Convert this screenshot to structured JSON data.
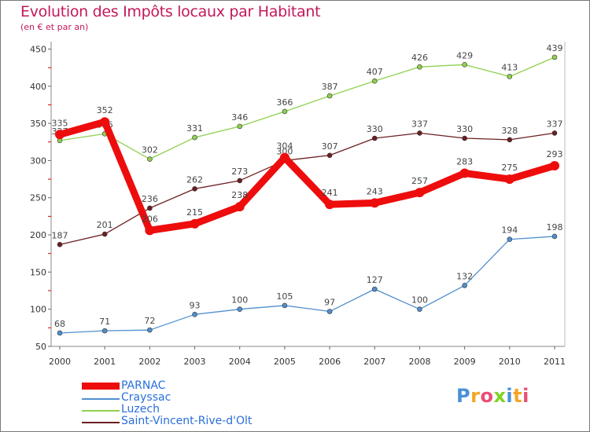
{
  "chart_data": {
    "type": "line",
    "title": "Evolution des Impôts locaux par Habitant",
    "subtitle": "(en € et par an)",
    "xlabel": "",
    "ylabel": "",
    "categories": [
      "2000",
      "2001",
      "2002",
      "2003",
      "2004",
      "2005",
      "2006",
      "2007",
      "2008",
      "2009",
      "2010",
      "2011"
    ],
    "ylim": [
      50,
      460
    ],
    "yticks": [
      50,
      100,
      150,
      200,
      250,
      300,
      350,
      400,
      450
    ],
    "grid": false,
    "legend_position": "bottom-left",
    "series": [
      {
        "name": "Luzech",
        "color": "#8fd14f",
        "values": [
          327,
          336,
          302,
          331,
          346,
          366,
          387,
          407,
          426,
          429,
          413,
          439
        ]
      },
      {
        "name": "Saint-Vincent-Rive-d'Olt",
        "color": "#6b1f22",
        "values": [
          187,
          201,
          236,
          262,
          273,
          300,
          307,
          330,
          337,
          330,
          328,
          337
        ]
      },
      {
        "name": "Crayssac",
        "color": "#4f8fcf",
        "values": [
          68,
          71,
          72,
          93,
          100,
          105,
          97,
          127,
          100,
          132,
          194,
          198
        ]
      },
      {
        "name": "PARNAC",
        "color": "#ee0d0d",
        "values": [
          335,
          352,
          206,
          215,
          238,
          304,
          241,
          243,
          257,
          283,
          275,
          293
        ]
      }
    ]
  },
  "legend": {
    "items": [
      "PARNAC",
      "Crayssac",
      "Luzech",
      "Saint-Vincent-Rive-d'Olt"
    ]
  },
  "logo": {
    "letters": [
      "P",
      "r",
      "o",
      "x",
      "i",
      "t",
      "i"
    ]
  }
}
